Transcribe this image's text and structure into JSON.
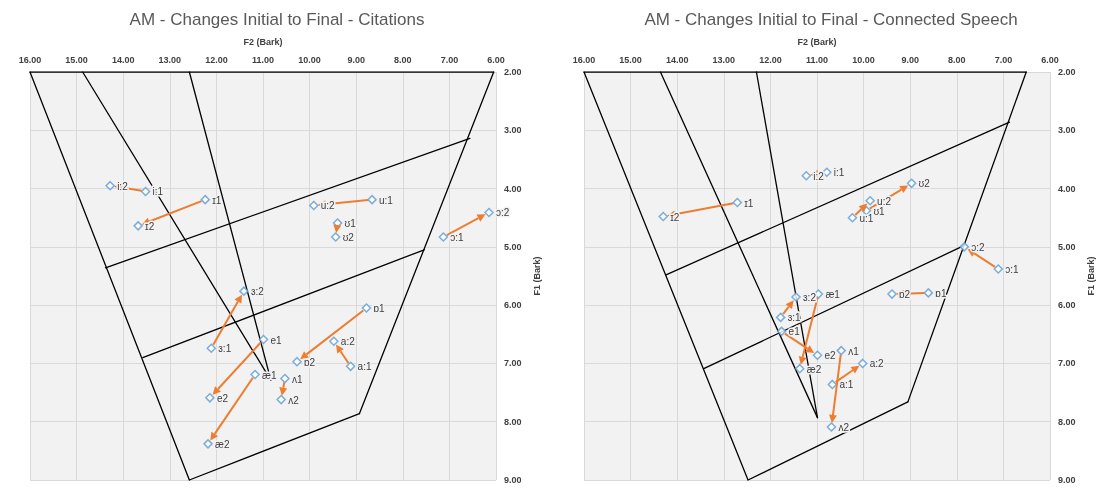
{
  "chart_data": [
    {
      "type": "scatter",
      "title": "AM - Changes Initial to Final - Citations",
      "xlabel": "F2 (Bark)",
      "ylabel": "F1 (Bark)",
      "xlim": [
        16,
        6
      ],
      "ylim": [
        9,
        2
      ],
      "grid": true,
      "marker": "diamond",
      "xticks": [
        {
          "value": 16,
          "label": "16.00"
        },
        {
          "value": 15,
          "label": "15.00"
        },
        {
          "value": 14,
          "label": "14.00"
        },
        {
          "value": 13,
          "label": "13.00"
        },
        {
          "value": 12,
          "label": "12.00"
        },
        {
          "value": 11,
          "label": "11.00"
        },
        {
          "value": 10,
          "label": "10.00"
        },
        {
          "value": 9,
          "label": "9.00"
        },
        {
          "value": 8,
          "label": "8.00"
        },
        {
          "value": 7,
          "label": "7.00"
        },
        {
          "value": 6,
          "label": "6.00"
        }
      ],
      "yticks": [
        {
          "value": 2,
          "label": "2.00"
        },
        {
          "value": 3,
          "label": "3.00"
        },
        {
          "value": 4,
          "label": "4.00"
        },
        {
          "value": 5,
          "label": "5.00"
        },
        {
          "value": 6,
          "label": "6.00"
        },
        {
          "value": 7,
          "label": "7.00"
        },
        {
          "value": 8,
          "label": "8.00"
        },
        {
          "value": 9,
          "label": "9.00"
        }
      ],
      "series": [
        {
          "type": "line",
          "color": "#000000",
          "marker": "none",
          "x": [
            6.05,
            16
          ],
          "values": [
            2,
            2
          ]
        },
        {
          "type": "line",
          "color": "#000000",
          "marker": "none",
          "x": [
            6.05,
            8.93
          ],
          "values": [
            2,
            7.86
          ]
        },
        {
          "type": "line",
          "color": "#000000",
          "marker": "none",
          "x": [
            8.93,
            12.58
          ],
          "values": [
            7.86,
            9.0
          ]
        },
        {
          "type": "line",
          "color": "#000000",
          "marker": "none",
          "x": [
            12.58,
            16
          ],
          "values": [
            9.0,
            2
          ]
        },
        {
          "type": "line",
          "color": "#000000",
          "marker": "none",
          "x": [
            10.83,
            14.87
          ],
          "values": [
            7.29,
            2
          ]
        },
        {
          "type": "line",
          "color": "#000000",
          "marker": "none",
          "x": [
            10.83,
            12.58
          ],
          "values": [
            7.29,
            2
          ]
        },
        {
          "type": "line",
          "color": "#000000",
          "marker": "none",
          "x": [
            6.56,
            14.38
          ],
          "values": [
            3.14,
            5.36
          ]
        },
        {
          "type": "line",
          "color": "#000000",
          "marker": "none",
          "x": [
            7.54,
            13.58
          ],
          "values": [
            5.05,
            6.9
          ]
        },
        {
          "color": "#5b9bd5",
          "x": [
            13.52,
            14.28
          ],
          "values": [
            4.05,
            3.95
          ]
        },
        {
          "color": "#5b9bd5",
          "x": [
            12.24,
            13.68
          ],
          "values": [
            4.19,
            4.64
          ]
        },
        {
          "color": "#5b9bd5",
          "x": [
            8.66,
            9.91
          ],
          "values": [
            4.19,
            4.29
          ]
        },
        {
          "color": "#5b9bd5",
          "x": [
            9.4,
            9.44
          ],
          "values": [
            4.59,
            4.83
          ]
        },
        {
          "color": "#5b9bd5",
          "x": [
            7.13,
            6.15
          ],
          "values": [
            4.83,
            4.41
          ]
        },
        {
          "color": "#5b9bd5",
          "x": [
            12.11,
            11.41
          ],
          "values": [
            6.74,
            5.76
          ]
        },
        {
          "color": "#5b9bd5",
          "x": [
            10.99,
            12.14
          ],
          "values": [
            6.59,
            7.59
          ]
        },
        {
          "color": "#5b9bd5",
          "x": [
            11.17,
            12.18
          ],
          "values": [
            7.19,
            8.38
          ]
        },
        {
          "color": "#5b9bd5",
          "x": [
            10.53,
            10.61
          ],
          "values": [
            7.26,
            7.62
          ]
        },
        {
          "color": "#5b9bd5",
          "x": [
            8.78,
            10.27
          ],
          "values": [
            6.05,
            6.97
          ]
        },
        {
          "color": "#5b9bd5",
          "x": [
            9.12,
            9.48
          ],
          "values": [
            7.05,
            6.62
          ]
        }
      ],
      "annotations": [
        {
          "text": "i:1",
          "x": 13.52,
          "y": 4.05
        },
        {
          "text": "i:2",
          "x": 14.28,
          "y": 3.95
        },
        {
          "text": "ɪ1",
          "x": 12.24,
          "y": 4.19
        },
        {
          "text": "ɪ2",
          "x": 13.68,
          "y": 4.64
        },
        {
          "text": "u:1",
          "x": 8.66,
          "y": 4.19
        },
        {
          "text": "u:2",
          "x": 9.91,
          "y": 4.29
        },
        {
          "text": "ʊ1",
          "x": 9.4,
          "y": 4.59
        },
        {
          "text": "ʊ2",
          "x": 9.44,
          "y": 4.83
        },
        {
          "text": "ɔ:1",
          "x": 7.13,
          "y": 4.83
        },
        {
          "text": "ɔ:2",
          "x": 6.15,
          "y": 4.41
        },
        {
          "text": "ɜ:1",
          "x": 12.11,
          "y": 6.74
        },
        {
          "text": "ɜ:2",
          "x": 11.41,
          "y": 5.76
        },
        {
          "text": "e1",
          "x": 10.99,
          "y": 6.59
        },
        {
          "text": "e2",
          "x": 12.14,
          "y": 7.59
        },
        {
          "text": "æ1",
          "x": 11.17,
          "y": 7.19
        },
        {
          "text": "æ2",
          "x": 12.18,
          "y": 8.38
        },
        {
          "text": "ʌ1",
          "x": 10.53,
          "y": 7.26
        },
        {
          "text": "ʌ2",
          "x": 10.61,
          "y": 7.62
        },
        {
          "text": "ɒ1",
          "x": 8.78,
          "y": 6.05
        },
        {
          "text": "ɒ2",
          "x": 10.27,
          "y": 6.97
        },
        {
          "text": "a:1",
          "x": 9.12,
          "y": 7.05
        },
        {
          "text": "a:2",
          "x": 9.48,
          "y": 6.62
        }
      ]
    },
    {
      "type": "scatter",
      "title": "AM - Changes Initial to Final - Connected Speech",
      "xlabel": "F2 (Bark)",
      "ylabel": "F1 (Bark)",
      "xlim": [
        16,
        6
      ],
      "ylim": [
        9,
        2
      ],
      "grid": true,
      "marker": "diamond",
      "xticks": [
        {
          "value": 16,
          "label": "16.00"
        },
        {
          "value": 15,
          "label": "15.00"
        },
        {
          "value": 14,
          "label": "14.00"
        },
        {
          "value": 13,
          "label": "13.00"
        },
        {
          "value": 12,
          "label": "12.00"
        },
        {
          "value": 11,
          "label": "11.00"
        },
        {
          "value": 10,
          "label": "10.00"
        },
        {
          "value": 9,
          "label": "9.00"
        },
        {
          "value": 8,
          "label": "8.00"
        },
        {
          "value": 7,
          "label": "7.00"
        },
        {
          "value": 6,
          "label": "6.00"
        }
      ],
      "yticks": [
        {
          "value": 2,
          "label": "2.00"
        },
        {
          "value": 3,
          "label": "3.00"
        },
        {
          "value": 4,
          "label": "4.00"
        },
        {
          "value": 5,
          "label": "5.00"
        },
        {
          "value": 6,
          "label": "6.00"
        },
        {
          "value": 7,
          "label": "7.00"
        },
        {
          "value": 8,
          "label": "8.00"
        },
        {
          "value": 9,
          "label": "9.00"
        }
      ],
      "series": [
        {
          "type": "line",
          "color": "#000000",
          "marker": "none",
          "x": [
            6.51,
            16
          ],
          "values": [
            2,
            2
          ]
        },
        {
          "type": "line",
          "color": "#000000",
          "marker": "none",
          "x": [
            6.51,
            9.05
          ],
          "values": [
            2,
            7.66
          ]
        },
        {
          "type": "line",
          "color": "#000000",
          "marker": "none",
          "x": [
            9.05,
            12.48
          ],
          "values": [
            7.66,
            9.0
          ]
        },
        {
          "type": "line",
          "color": "#000000",
          "marker": "none",
          "x": [
            12.48,
            16
          ],
          "values": [
            9.0,
            2
          ]
        },
        {
          "type": "line",
          "color": "#000000",
          "marker": "none",
          "x": [
            10.99,
            14.36
          ],
          "values": [
            7.93,
            2
          ]
        },
        {
          "type": "line",
          "color": "#000000",
          "marker": "none",
          "x": [
            10.99,
            12.3
          ],
          "values": [
            7.93,
            2
          ]
        },
        {
          "type": "line",
          "color": "#000000",
          "marker": "none",
          "x": [
            6.87,
            14.24
          ],
          "values": [
            2.86,
            5.48
          ]
        },
        {
          "type": "line",
          "color": "#000000",
          "marker": "none",
          "x": [
            7.85,
            13.43
          ],
          "values": [
            4.98,
            7.09
          ]
        },
        {
          "color": "#5b9bd5",
          "x": [
            10.79,
            11.23
          ],
          "values": [
            3.72,
            3.78
          ]
        },
        {
          "color": "#5b9bd5",
          "x": [
            12.71,
            14.3
          ],
          "values": [
            4.24,
            4.48
          ]
        },
        {
          "color": "#5b9bd5",
          "x": [
            10.24,
            9.86
          ],
          "values": [
            4.5,
            4.21
          ]
        },
        {
          "color": "#5b9bd5",
          "x": [
            9.94,
            8.97
          ],
          "values": [
            4.38,
            3.91
          ]
        },
        {
          "color": "#5b9bd5",
          "x": [
            7.11,
            7.84
          ],
          "values": [
            5.38,
            5.0
          ]
        },
        {
          "color": "#5b9bd5",
          "x": [
            11.78,
            11.45
          ],
          "values": [
            6.21,
            5.86
          ]
        },
        {
          "color": "#5b9bd5",
          "x": [
            11.76,
            10.99
          ],
          "values": [
            6.45,
            6.86
          ]
        },
        {
          "color": "#5b9bd5",
          "x": [
            10.97,
            11.37
          ],
          "values": [
            5.81,
            7.09
          ]
        },
        {
          "color": "#5b9bd5",
          "x": [
            10.48,
            10.69
          ],
          "values": [
            6.78,
            8.09
          ]
        },
        {
          "color": "#5b9bd5",
          "x": [
            8.61,
            9.39
          ],
          "values": [
            5.79,
            5.81
          ]
        },
        {
          "color": "#5b9bd5",
          "x": [
            10.67,
            10.02
          ],
          "values": [
            7.36,
            7.0
          ]
        }
      ],
      "annotations": [
        {
          "text": "i:1",
          "x": 10.79,
          "y": 3.72
        },
        {
          "text": "i:2",
          "x": 11.23,
          "y": 3.78
        },
        {
          "text": "ɪ1",
          "x": 12.71,
          "y": 4.24
        },
        {
          "text": "ɪ2",
          "x": 14.3,
          "y": 4.48
        },
        {
          "text": "u:1",
          "x": 10.24,
          "y": 4.5
        },
        {
          "text": "u:2",
          "x": 9.86,
          "y": 4.21
        },
        {
          "text": "ʊ1",
          "x": 9.94,
          "y": 4.38
        },
        {
          "text": "ʊ2",
          "x": 8.97,
          "y": 3.91
        },
        {
          "text": "ɔ:1",
          "x": 7.11,
          "y": 5.38
        },
        {
          "text": "ɔ:2",
          "x": 7.84,
          "y": 5.0
        },
        {
          "text": "ɜ:1",
          "x": 11.78,
          "y": 6.21
        },
        {
          "text": "ɜ:2",
          "x": 11.45,
          "y": 5.86
        },
        {
          "text": "e1",
          "x": 11.76,
          "y": 6.45
        },
        {
          "text": "e2",
          "x": 10.99,
          "y": 6.86
        },
        {
          "text": "æ1",
          "x": 10.97,
          "y": 5.81
        },
        {
          "text": "æ2",
          "x": 11.37,
          "y": 7.09
        },
        {
          "text": "ʌ1",
          "x": 10.48,
          "y": 6.78
        },
        {
          "text": "ʌ2",
          "x": 10.69,
          "y": 8.09
        },
        {
          "text": "ɒ1",
          "x": 8.61,
          "y": 5.79
        },
        {
          "text": "ɒ2",
          "x": 9.39,
          "y": 5.81
        },
        {
          "text": "a:1",
          "x": 10.67,
          "y": 7.36
        },
        {
          "text": "a:2",
          "x": 10.02,
          "y": 7.0
        }
      ]
    }
  ]
}
